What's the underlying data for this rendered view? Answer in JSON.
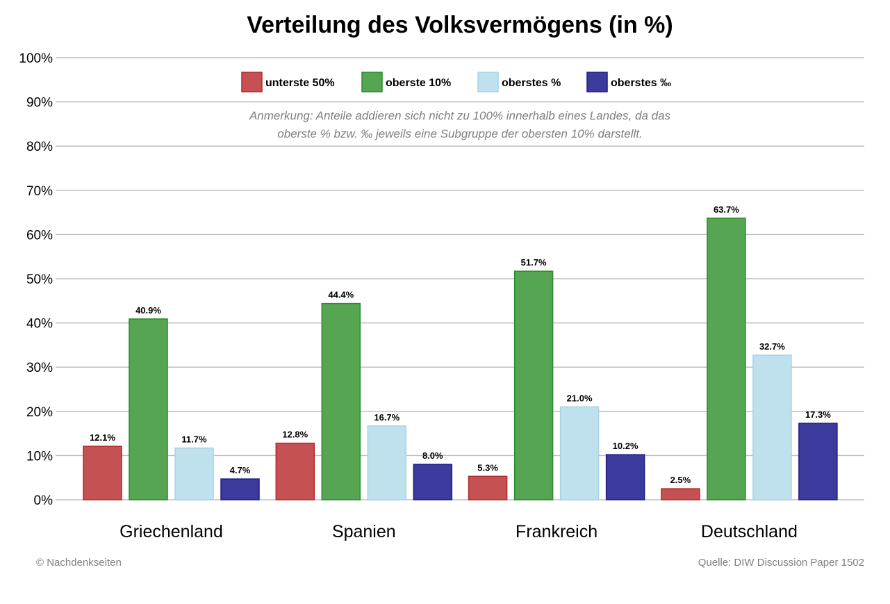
{
  "chart_data": {
    "type": "bar",
    "title": "Verteilung des Volksvermögens (in %)",
    "xlabel": "",
    "ylabel": "",
    "ylim": [
      0,
      100
    ],
    "yticks": [
      0,
      10,
      20,
      30,
      40,
      50,
      60,
      70,
      80,
      90,
      100
    ],
    "ytick_labels": [
      "0%",
      "10%",
      "20%",
      "30%",
      "40%",
      "50%",
      "60%",
      "70%",
      "80%",
      "90%",
      "100%"
    ],
    "grid": true,
    "legend_position": "top-center",
    "categories": [
      "Griechenland",
      "Spanien",
      "Frankreich",
      "Deutschland"
    ],
    "series": [
      {
        "name": "unterste 50%",
        "color": "#c55152",
        "stroke": "#b02a2c",
        "values": [
          12.1,
          12.8,
          5.3,
          2.5
        ],
        "labels": [
          "12.1%",
          "12.8%",
          "5.3%",
          "2.5%"
        ]
      },
      {
        "name": "oberste 10%",
        "color": "#55a552",
        "stroke": "#2b8a29",
        "values": [
          40.9,
          44.4,
          51.7,
          63.7
        ],
        "labels": [
          "40.9%",
          "44.4%",
          "51.7%",
          "63.7%"
        ]
      },
      {
        "name": "oberstes %",
        "color": "#bfe1ee",
        "stroke": "#a5d3e6",
        "values": [
          11.7,
          16.7,
          21.0,
          32.7
        ],
        "labels": [
          "11.7%",
          "16.7%",
          "21.0%",
          "32.7%"
        ]
      },
      {
        "name": "oberstes ‰",
        "color": "#3c3a9c",
        "stroke": "#1f1d80",
        "values": [
          4.7,
          8.0,
          10.2,
          17.3
        ],
        "labels": [
          "4.7%",
          "8.0%",
          "10.2%",
          "17.3%"
        ]
      }
    ],
    "annotation_lines": [
      "Anmerkung: Anteile addieren sich nicht zu 100% innerhalb eines Landes, da das",
      "oberste % bzw. ‰ jeweils eine Subgruppe der obersten 10% darstellt."
    ]
  },
  "footer": {
    "left": "© Nachdenkseiten",
    "right": "Quelle: DIW Discussion Paper 1502"
  }
}
